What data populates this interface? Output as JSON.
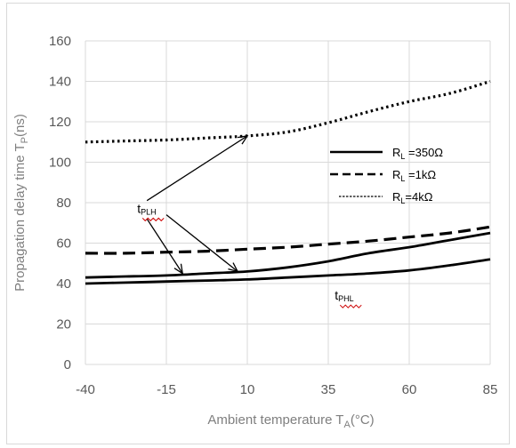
{
  "chart_data": {
    "type": "line",
    "title": "",
    "xlabel": {
      "main": "Ambient temperature T",
      "sub": "A",
      "tail": "(°C)"
    },
    "ylabel": {
      "main": "Propagation delay time  T",
      "sub": "P",
      "tail": "(ns)"
    },
    "xlim": [
      -40,
      85
    ],
    "ylim": [
      0,
      160
    ],
    "x_ticks": [
      "-40",
      "-15",
      "10",
      "35",
      "60",
      "85"
    ],
    "y_ticks": [
      "0",
      "20",
      "40",
      "60",
      "80",
      "100",
      "120",
      "140",
      "160"
    ],
    "grid": true,
    "legend_position": "right",
    "series": [
      {
        "name": "R_L=350Ω",
        "legend": {
          "pre": "R",
          "sub": "L",
          "post": " =350Ω"
        },
        "style": "solid",
        "branch": "tPLH",
        "x": [
          -40,
          -27.5,
          -15,
          -2.5,
          10,
          22.5,
          35,
          47.5,
          60,
          72.5,
          85
        ],
        "y": [
          43,
          43.5,
          44,
          45,
          46,
          48,
          51,
          55,
          58,
          61.5,
          65
        ]
      },
      {
        "name": "R_L=350Ω",
        "style": "solid",
        "branch": "tPHL",
        "x": [
          -40,
          -27.5,
          -15,
          -2.5,
          10,
          22.5,
          35,
          47.5,
          60,
          72.5,
          85
        ],
        "y": [
          40,
          40.5,
          41,
          41.5,
          42,
          43,
          44,
          45,
          46.5,
          49,
          52
        ]
      },
      {
        "name": "R_L=1kΩ",
        "legend": {
          "pre": "R",
          "sub": "L",
          "post": " =1kΩ"
        },
        "style": "dashed",
        "x": [
          -40,
          -27.5,
          -15,
          -2.5,
          10,
          22.5,
          35,
          47.5,
          60,
          72.5,
          85
        ],
        "y": [
          55,
          55,
          55.5,
          56,
          57,
          58,
          59.5,
          61,
          63,
          65,
          68
        ]
      },
      {
        "name": "R_L=4kΩ",
        "legend": {
          "pre": "R",
          "sub": "L",
          "post": "=4kΩ"
        },
        "style": "dotted",
        "x": [
          -40,
          -27.5,
          -15,
          -2.5,
          10,
          22.5,
          35,
          47.5,
          60,
          72.5,
          85
        ],
        "y": [
          110,
          110.5,
          111,
          112,
          113,
          115,
          119.5,
          125,
          130,
          134,
          140
        ]
      }
    ],
    "annotations": [
      {
        "main": "t",
        "sub": "PLH",
        "x": -24,
        "y": 75
      },
      {
        "main": "t",
        "sub": "PHL",
        "x": 37,
        "y": 32
      }
    ],
    "arrows": [
      {
        "from": [
          -21,
          81
        ],
        "to": [
          10,
          113
        ]
      },
      {
        "from": [
          -21,
          72
        ],
        "to": [
          -10,
          45
        ]
      },
      {
        "from": [
          -15,
          74
        ],
        "to": [
          7,
          46
        ]
      }
    ],
    "colors": {
      "line": "#000000",
      "grid": "#d9d9d9",
      "tick": "#595959",
      "axis_title": "#7f7f7f",
      "squiggle": "#cc0000"
    }
  }
}
